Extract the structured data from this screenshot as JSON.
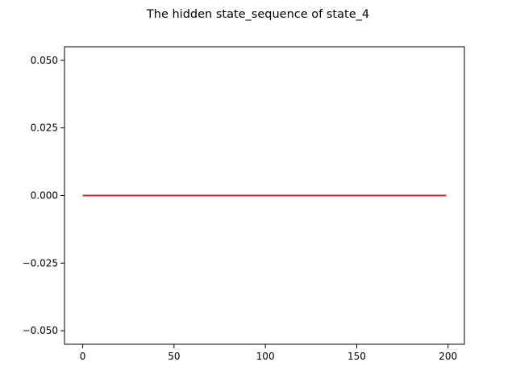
{
  "chart_data": {
    "type": "line",
    "title": "The hidden state_sequence of state_4",
    "xlabel": "",
    "ylabel": "",
    "x_range": [
      0,
      199
    ],
    "xlim": [
      -9.95,
      208.95
    ],
    "ylim": [
      -0.055,
      0.055
    ],
    "xticks": [
      0,
      50,
      100,
      150,
      200
    ],
    "xtick_labels": [
      "0",
      "50",
      "100",
      "150",
      "200"
    ],
    "yticks": [
      -0.05,
      -0.025,
      0.0,
      0.025,
      0.05
    ],
    "ytick_labels": [
      "−0.050",
      "−0.025",
      "0.000",
      "0.025",
      "0.050"
    ],
    "grid": false,
    "series": [
      {
        "color": "#d62728",
        "x_start": 0,
        "x_end": 199,
        "constant_value": 0.0
      }
    ]
  }
}
